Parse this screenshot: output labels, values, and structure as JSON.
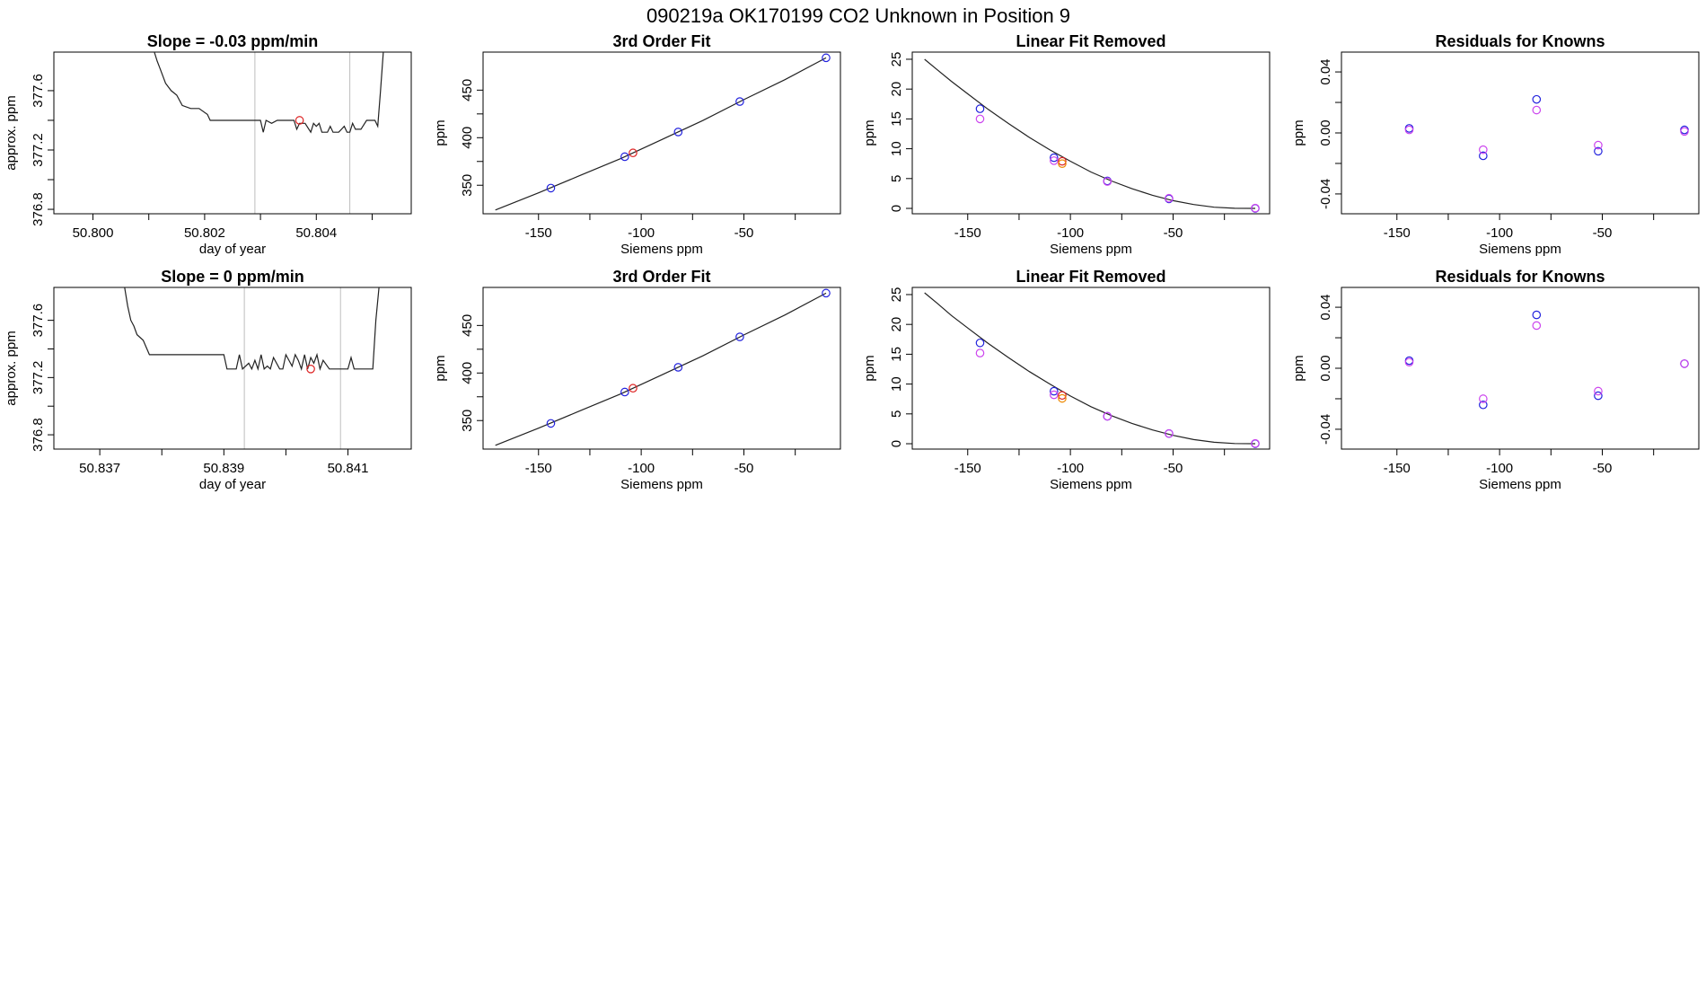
{
  "figure": {
    "title": "090219a      OK170199    CO2 Unknown in Position  9"
  },
  "colors": {
    "axis": "#000000",
    "line": "#222222",
    "vline": "#bebebe",
    "blue": "#2222dd",
    "red": "#dd2222",
    "violet": "#cc44ee",
    "orange": "#ee8800"
  },
  "chart_data": [
    {
      "id": "ts1",
      "type": "line",
      "title": "Slope =  -0.03  ppm/min",
      "xlabel": "day of year",
      "ylabel": "approx. ppm",
      "xlim": [
        50.7993,
        50.8057
      ],
      "ylim": [
        376.77,
        377.86
      ],
      "xticks": [
        50.8,
        50.801,
        50.802,
        50.803,
        50.804,
        50.805
      ],
      "xtick_labels": [
        "50.800",
        "",
        "50.802",
        "",
        "50.804",
        ""
      ],
      "yticks": [
        376.8,
        377.0,
        377.2,
        377.4,
        377.6
      ],
      "ytick_labels": [
        "376.8",
        "",
        "377.2",
        "",
        "377.6"
      ],
      "vlines": [
        50.8029,
        50.8046
      ],
      "trace_x": [
        50.8011,
        50.80115,
        50.8012,
        50.80125,
        50.8013,
        50.8014,
        50.8015,
        50.8016,
        50.80175,
        50.8019,
        50.80205,
        50.8021,
        50.803,
        50.80305,
        50.8031,
        50.8032,
        50.8033,
        50.8036,
        50.80365,
        50.8037,
        50.8038,
        50.8039,
        50.80395,
        50.804,
        50.80405,
        50.8041,
        50.8042,
        50.80425,
        50.8043,
        50.8044,
        50.8045,
        50.80455,
        50.8046,
        50.80465,
        50.8047,
        50.8048,
        50.8049,
        50.805,
        50.80505,
        50.8051,
        50.80515,
        50.8052
      ],
      "trace_y": [
        377.86,
        377.8,
        377.75,
        377.7,
        377.65,
        377.6,
        377.57,
        377.5,
        377.48,
        377.48,
        377.44,
        377.4,
        377.4,
        377.32,
        377.4,
        377.38,
        377.4,
        377.4,
        377.34,
        377.38,
        377.38,
        377.32,
        377.38,
        377.36,
        377.38,
        377.32,
        377.32,
        377.36,
        377.32,
        377.32,
        377.36,
        377.32,
        377.32,
        377.38,
        377.34,
        377.34,
        377.4,
        377.4,
        377.4,
        377.36,
        377.6,
        377.86
      ],
      "points": [
        {
          "x": 50.8037,
          "y": 377.4,
          "color": "red"
        }
      ]
    },
    {
      "id": "fit1",
      "type": "line",
      "title": "3rd Order Fit",
      "xlabel": "Siemens ppm",
      "ylabel": "ppm",
      "xlim": [
        -177,
        -3
      ],
      "ylim": [
        320,
        490
      ],
      "xticks": [
        -150,
        -125,
        -100,
        -75,
        -50,
        -25
      ],
      "xtick_labels": [
        "-150",
        "",
        "-100",
        "",
        "-50",
        ""
      ],
      "yticks": [
        350,
        375,
        400,
        425,
        450
      ],
      "ytick_labels": [
        "350",
        "",
        "400",
        "",
        "450"
      ],
      "curve_x": [
        -171,
        -150,
        -130,
        -110,
        -90,
        -70,
        -50,
        -30,
        -10
      ],
      "curve_y": [
        324,
        342,
        360,
        378,
        398,
        418,
        440,
        461,
        484
      ],
      "points": [
        {
          "x": -144,
          "y": 347,
          "color": "blue"
        },
        {
          "x": -108,
          "y": 380,
          "color": "blue"
        },
        {
          "x": -104,
          "y": 384,
          "color": "red"
        },
        {
          "x": -82,
          "y": 406,
          "color": "blue"
        },
        {
          "x": -52,
          "y": 438,
          "color": "blue"
        },
        {
          "x": -10,
          "y": 484,
          "color": "blue"
        }
      ]
    },
    {
      "id": "lin1",
      "type": "line",
      "title": "Linear Fit Removed",
      "xlabel": "Siemens ppm",
      "ylabel": "ppm",
      "xlim": [
        -177,
        -3
      ],
      "ylim": [
        -0.9,
        26.2
      ],
      "xticks": [
        -150,
        -125,
        -100,
        -75,
        -50,
        -25
      ],
      "xtick_labels": [
        "-150",
        "",
        "-100",
        "",
        "-50",
        ""
      ],
      "yticks": [
        0,
        5,
        10,
        15,
        20,
        25
      ],
      "ytick_labels": [
        "0",
        "5",
        "10",
        "15",
        "20",
        "25"
      ],
      "curve_x": [
        -171,
        -165,
        -158,
        -150,
        -140,
        -130,
        -120,
        -110,
        -100,
        -90,
        -80,
        -70,
        -60,
        -50,
        -40,
        -30,
        -20,
        -10
      ],
      "curve_y": [
        25.0,
        23.3,
        21.3,
        19.2,
        16.6,
        14.2,
        11.9,
        9.8,
        7.9,
        6.1,
        4.6,
        3.3,
        2.2,
        1.3,
        0.65,
        0.2,
        0.02,
        0.0
      ],
      "points": [
        {
          "x": -144,
          "y": 16.7,
          "color": "blue"
        },
        {
          "x": -144,
          "y": 15.0,
          "color": "violet"
        },
        {
          "x": -108,
          "y": 8.5,
          "color": "blue"
        },
        {
          "x": -108,
          "y": 8.0,
          "color": "violet"
        },
        {
          "x": -104,
          "y": 7.9,
          "color": "red"
        },
        {
          "x": -104,
          "y": 7.5,
          "color": "orange"
        },
        {
          "x": -82,
          "y": 4.6,
          "color": "blue"
        },
        {
          "x": -82,
          "y": 4.5,
          "color": "violet"
        },
        {
          "x": -52,
          "y": 1.6,
          "color": "blue"
        },
        {
          "x": -52,
          "y": 1.7,
          "color": "violet"
        },
        {
          "x": -10,
          "y": 0.0,
          "color": "blue"
        },
        {
          "x": -10,
          "y": 0.05,
          "color": "violet"
        }
      ]
    },
    {
      "id": "res1",
      "type": "scatter",
      "title": "Residuals for Knowns",
      "xlabel": "Siemens ppm",
      "ylabel": "ppm",
      "xlim": [
        -177,
        -3
      ],
      "ylim": [
        -0.053,
        0.053
      ],
      "xticks": [
        -150,
        -125,
        -100,
        -75,
        -50,
        -25
      ],
      "xtick_labels": [
        "-150",
        "",
        "-100",
        "",
        "-50",
        ""
      ],
      "yticks": [
        -0.04,
        -0.02,
        0.0,
        0.02,
        0.04
      ],
      "ytick_labels": [
        "-0.04",
        "",
        "0.00",
        "",
        "0.04"
      ],
      "points": [
        {
          "x": -144,
          "y": 0.003,
          "color": "blue"
        },
        {
          "x": -144,
          "y": 0.002,
          "color": "violet"
        },
        {
          "x": -108,
          "y": -0.015,
          "color": "blue"
        },
        {
          "x": -108,
          "y": -0.011,
          "color": "violet"
        },
        {
          "x": -82,
          "y": 0.022,
          "color": "blue"
        },
        {
          "x": -82,
          "y": 0.015,
          "color": "violet"
        },
        {
          "x": -52,
          "y": -0.012,
          "color": "blue"
        },
        {
          "x": -52,
          "y": -0.008,
          "color": "violet"
        },
        {
          "x": -10,
          "y": 0.002,
          "color": "blue"
        },
        {
          "x": -10,
          "y": 0.001,
          "color": "violet"
        }
      ]
    },
    {
      "id": "ts2",
      "type": "line",
      "title": "Slope =  0  ppm/min",
      "xlabel": "day of year",
      "ylabel": "approx. ppm",
      "xlim": [
        50.83626,
        50.84202
      ],
      "ylim": [
        376.7,
        377.83
      ],
      "xticks": [
        50.837,
        50.838,
        50.839,
        50.84,
        50.841
      ],
      "xtick_labels": [
        "50.837",
        "",
        "50.839",
        "",
        "50.841"
      ],
      "yticks": [
        376.8,
        377.0,
        377.2,
        377.4,
        377.6
      ],
      "ytick_labels": [
        "376.8",
        "",
        "377.2",
        "",
        "377.6"
      ],
      "vlines": [
        50.83933,
        50.84088
      ],
      "trace_x": [
        50.8374,
        50.83745,
        50.8375,
        50.83755,
        50.8376,
        50.8377,
        50.8378,
        50.8379,
        50.839,
        50.83905,
        50.8392,
        50.83925,
        50.8393,
        50.8394,
        50.83945,
        50.8395,
        50.83955,
        50.8396,
        50.83965,
        50.8397,
        50.83975,
        50.8398,
        50.8399,
        50.83995,
        50.84,
        50.8401,
        50.84015,
        50.8402,
        50.84025,
        50.8403,
        50.84035,
        50.8404,
        50.84045,
        50.8405,
        50.84055,
        50.8406,
        50.8407,
        50.841,
        50.84105,
        50.8411,
        50.8414,
        50.84145,
        50.8415
      ],
      "trace_y": [
        377.83,
        377.7,
        377.6,
        377.56,
        377.5,
        377.46,
        377.36,
        377.36,
        377.36,
        377.26,
        377.26,
        377.36,
        377.26,
        377.3,
        377.26,
        377.32,
        377.26,
        377.36,
        377.26,
        377.28,
        377.26,
        377.34,
        377.26,
        377.26,
        377.36,
        377.28,
        377.36,
        377.32,
        377.26,
        377.36,
        377.26,
        377.34,
        377.3,
        377.36,
        377.26,
        377.32,
        377.26,
        377.26,
        377.34,
        377.26,
        377.26,
        377.6,
        377.83
      ],
      "points": [
        {
          "x": 50.8404,
          "y": 377.26,
          "color": "red"
        }
      ]
    },
    {
      "id": "fit2",
      "type": "line",
      "title": "3rd Order Fit",
      "xlabel": "Siemens ppm",
      "ylabel": "ppm",
      "xlim": [
        -177,
        -3
      ],
      "ylim": [
        320,
        490
      ],
      "xticks": [
        -150,
        -125,
        -100,
        -75,
        -50,
        -25
      ],
      "xtick_labels": [
        "-150",
        "",
        "-100",
        "",
        "-50",
        ""
      ],
      "yticks": [
        350,
        375,
        400,
        425,
        450
      ],
      "ytick_labels": [
        "350",
        "",
        "400",
        "",
        "450"
      ],
      "curve_x": [
        -171,
        -150,
        -130,
        -110,
        -90,
        -70,
        -50,
        -30,
        -10
      ],
      "curve_y": [
        324,
        342,
        360,
        378,
        398,
        418,
        440,
        461,
        484
      ],
      "points": [
        {
          "x": -144,
          "y": 347,
          "color": "blue"
        },
        {
          "x": -108,
          "y": 380,
          "color": "blue"
        },
        {
          "x": -104,
          "y": 384,
          "color": "red"
        },
        {
          "x": -82,
          "y": 406,
          "color": "blue"
        },
        {
          "x": -52,
          "y": 438,
          "color": "blue"
        },
        {
          "x": -10,
          "y": 484,
          "color": "blue"
        }
      ]
    },
    {
      "id": "lin2",
      "type": "line",
      "title": "Linear Fit Removed",
      "xlabel": "Siemens ppm",
      "ylabel": "ppm",
      "xlim": [
        -177,
        -3
      ],
      "ylim": [
        -0.9,
        26.2
      ],
      "xticks": [
        -150,
        -125,
        -100,
        -75,
        -50,
        -25
      ],
      "xtick_labels": [
        "-150",
        "",
        "-100",
        "",
        "-50",
        ""
      ],
      "yticks": [
        0,
        5,
        10,
        15,
        20,
        25
      ],
      "ytick_labels": [
        "0",
        "5",
        "10",
        "15",
        "20",
        "25"
      ],
      "curve_x": [
        -171,
        -165,
        -158,
        -150,
        -140,
        -130,
        -120,
        -110,
        -100,
        -90,
        -80,
        -70,
        -60,
        -50,
        -40,
        -30,
        -20,
        -10
      ],
      "curve_y": [
        25.3,
        23.6,
        21.5,
        19.4,
        16.8,
        14.4,
        12.1,
        10.0,
        8.0,
        6.2,
        4.7,
        3.4,
        2.3,
        1.4,
        0.7,
        0.25,
        0.03,
        0.0
      ],
      "points": [
        {
          "x": -144,
          "y": 16.9,
          "color": "blue"
        },
        {
          "x": -144,
          "y": 15.2,
          "color": "violet"
        },
        {
          "x": -108,
          "y": 8.8,
          "color": "blue"
        },
        {
          "x": -108,
          "y": 8.2,
          "color": "violet"
        },
        {
          "x": -104,
          "y": 8.1,
          "color": "red"
        },
        {
          "x": -104,
          "y": 7.6,
          "color": "orange"
        },
        {
          "x": -82,
          "y": 4.6,
          "color": "blue"
        },
        {
          "x": -82,
          "y": 4.6,
          "color": "violet"
        },
        {
          "x": -52,
          "y": 1.7,
          "color": "blue"
        },
        {
          "x": -52,
          "y": 1.7,
          "color": "violet"
        },
        {
          "x": -10,
          "y": 0.0,
          "color": "blue"
        },
        {
          "x": -10,
          "y": 0.05,
          "color": "violet"
        }
      ]
    },
    {
      "id": "res2",
      "type": "scatter",
      "title": "Residuals for Knowns",
      "xlabel": "Siemens ppm",
      "ylabel": "ppm",
      "xlim": [
        -177,
        -3
      ],
      "ylim": [
        -0.053,
        0.053
      ],
      "xticks": [
        -150,
        -125,
        -100,
        -75,
        -50,
        -25
      ],
      "xtick_labels": [
        "-150",
        "",
        "-100",
        "",
        "-50",
        ""
      ],
      "yticks": [
        -0.04,
        -0.02,
        0.0,
        0.02,
        0.04
      ],
      "ytick_labels": [
        "-0.04",
        "",
        "0.00",
        "",
        "0.04"
      ],
      "points": [
        {
          "x": -144,
          "y": 0.005,
          "color": "blue"
        },
        {
          "x": -144,
          "y": 0.004,
          "color": "violet"
        },
        {
          "x": -108,
          "y": -0.024,
          "color": "blue"
        },
        {
          "x": -108,
          "y": -0.02,
          "color": "violet"
        },
        {
          "x": -82,
          "y": 0.035,
          "color": "blue"
        },
        {
          "x": -82,
          "y": 0.028,
          "color": "violet"
        },
        {
          "x": -52,
          "y": -0.018,
          "color": "blue"
        },
        {
          "x": -52,
          "y": -0.015,
          "color": "violet"
        },
        {
          "x": -10,
          "y": 0.003,
          "color": "blue"
        },
        {
          "x": -10,
          "y": 0.003,
          "color": "violet"
        }
      ]
    }
  ]
}
